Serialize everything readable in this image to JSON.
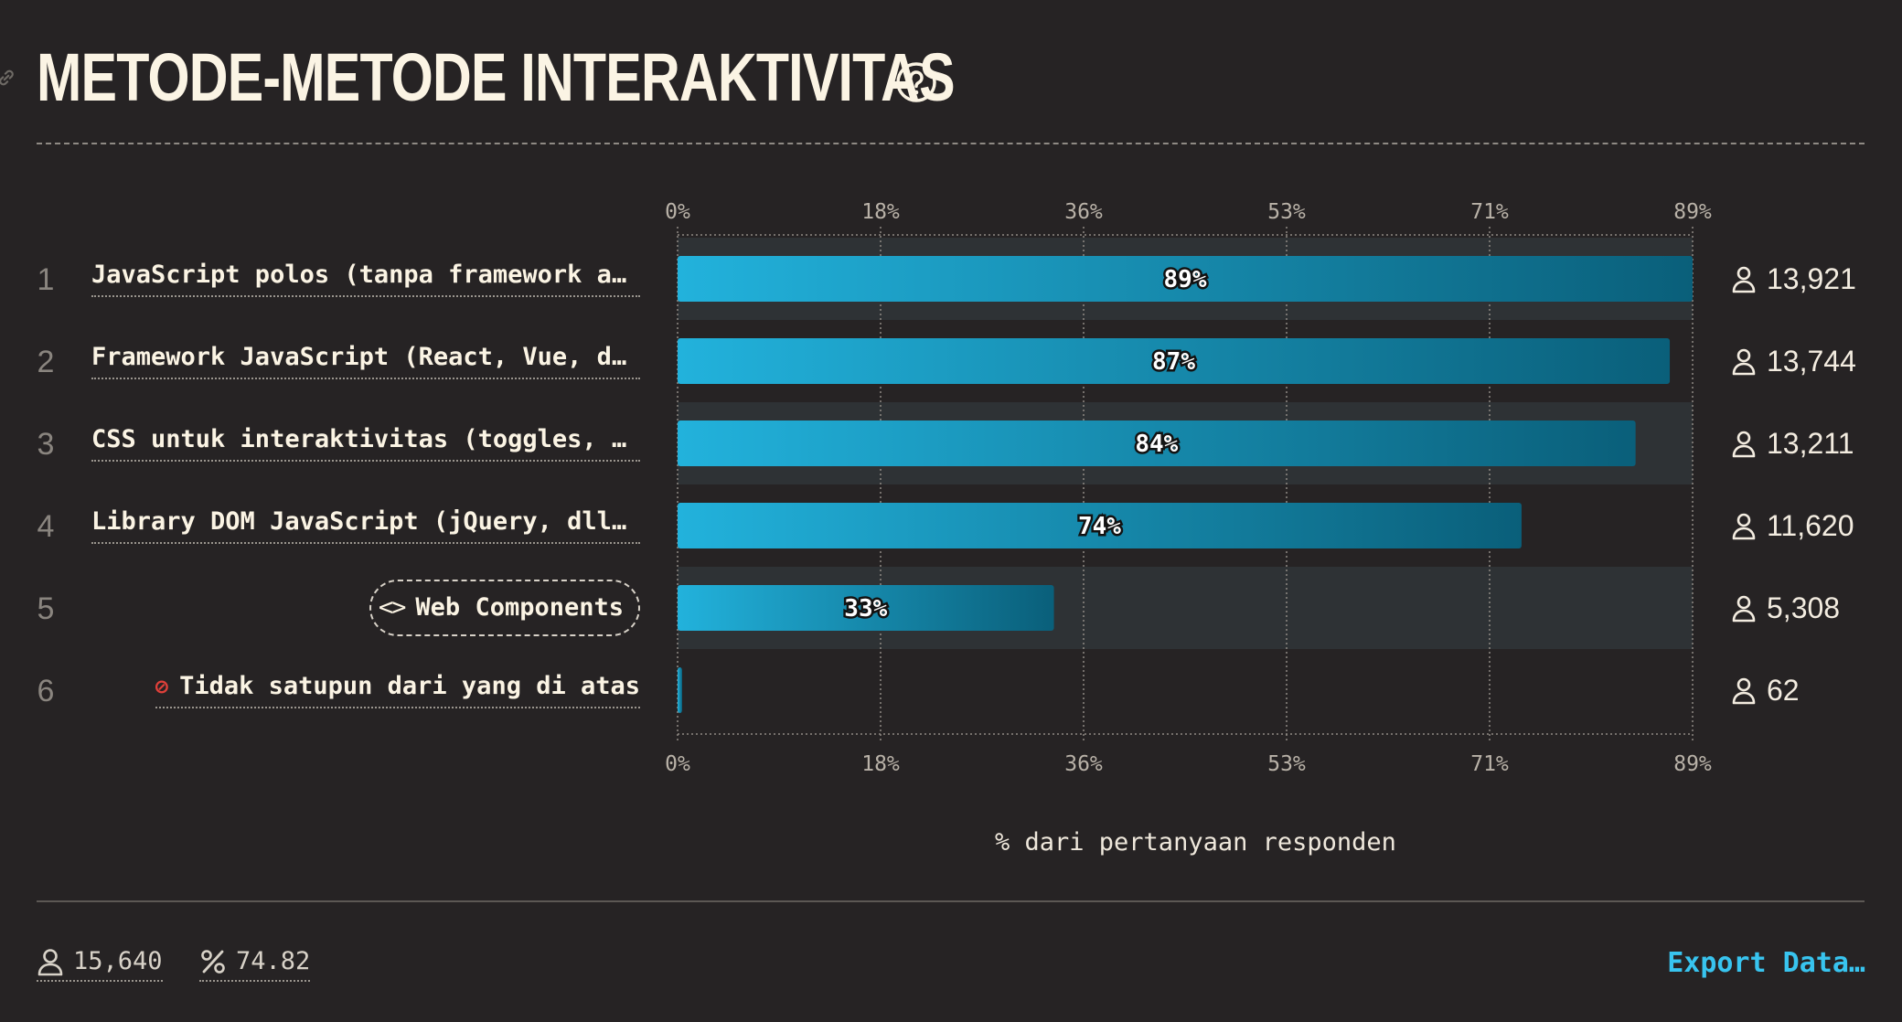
{
  "header": {
    "title": "METODE-METODE INTERAKTIVITAS",
    "help_icon": "question-circle-icon",
    "link_icon": "link-icon"
  },
  "footer": {
    "respondents": "15,640",
    "percentage": "74.82",
    "respondents_icon": "user-icon",
    "percentage_icon": "percent-icon",
    "export_label": "Export Data…"
  },
  "colors": {
    "background": "#262324",
    "bar_start": "#22b2dc",
    "bar_end": "#0a5f7a",
    "accent": "#38c4ef",
    "row_highlight": "#2e3235"
  },
  "chart_data": {
    "type": "bar",
    "orientation": "horizontal",
    "xlabel": "% dari pertanyaan responden",
    "xlim": [
      0,
      89
    ],
    "x_ticks": [
      "0%",
      "18%",
      "36%",
      "53%",
      "71%",
      "89%"
    ],
    "grid": true,
    "ranks": [
      "1",
      "2",
      "3",
      "4",
      "5",
      "6"
    ],
    "categories": [
      "JavaScript polos (tanpa framework atau…",
      "Framework JavaScript (React, Vue, dll.)",
      "CSS untuk interaktivitas (toggles, tab…",
      "Library DOM JavaScript (jQuery, dll.)",
      "Web Components",
      "Tidak satupun dari yang di atas"
    ],
    "category_icons": [
      "",
      "",
      "",
      "",
      "code-brackets-icon",
      "prohibited-icon"
    ],
    "values": [
      89,
      87,
      84,
      74,
      33,
      0.4
    ],
    "value_labels": [
      "89%",
      "87%",
      "84%",
      "74%",
      "33%",
      ""
    ],
    "counts": [
      "13,921",
      "13,744",
      "13,211",
      "11,620",
      "5,308",
      "62"
    ],
    "highlighted_rows": [
      0,
      2,
      4
    ]
  }
}
